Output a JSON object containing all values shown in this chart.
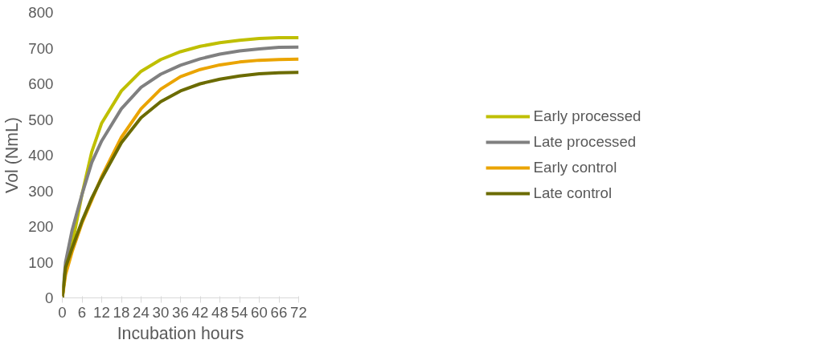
{
  "chart_data": {
    "type": "line",
    "xlabel": "Incubation hours",
    "ylabel": "Vol (NmL)",
    "x": [
      0,
      1,
      3,
      6,
      9,
      12,
      18,
      24,
      30,
      36,
      42,
      48,
      54,
      60,
      66,
      72
    ],
    "xlim": [
      0,
      72
    ],
    "xticks": [
      0,
      6,
      12,
      18,
      24,
      30,
      36,
      42,
      48,
      54,
      60,
      66,
      72
    ],
    "ylim": [
      0,
      800
    ],
    "yticks": [
      0,
      100,
      200,
      300,
      400,
      500,
      600,
      700,
      800
    ],
    "grid": false,
    "legend": "right",
    "marker": "none",
    "line_style": "solid",
    "series": [
      {
        "name": "Early processed",
        "color": "#bfbf00",
        "values": [
          0,
          80,
          150,
          290,
          410,
          490,
          580,
          635,
          668,
          690,
          705,
          715,
          722,
          727,
          729,
          729
        ]
      },
      {
        "name": "Late processed",
        "color": "#808080",
        "values": [
          0,
          100,
          190,
          290,
          380,
          440,
          530,
          590,
          627,
          652,
          670,
          683,
          692,
          698,
          702,
          703
        ]
      },
      {
        "name": "Early control",
        "color": "#eaa400",
        "values": [
          0,
          65,
          130,
          210,
          275,
          340,
          450,
          530,
          585,
          620,
          640,
          653,
          661,
          666,
          668,
          669
        ]
      },
      {
        "name": "Late control",
        "color": "#6b6b00",
        "values": [
          0,
          85,
          140,
          215,
          280,
          335,
          435,
          505,
          550,
          580,
          600,
          613,
          622,
          628,
          631,
          632
        ]
      }
    ]
  }
}
